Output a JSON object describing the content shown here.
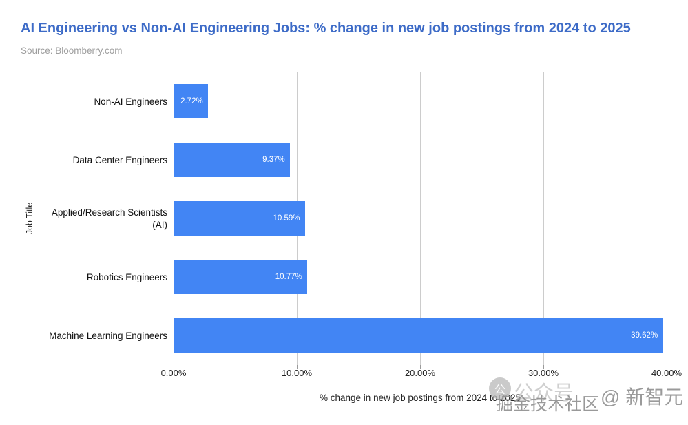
{
  "header": {
    "title": "AI Engineering vs Non-AI Engineering Jobs: % change in new job postings from 2024 to 2025",
    "source": "Source: Bloomberry.com"
  },
  "chart_data": {
    "type": "bar",
    "orientation": "horizontal",
    "title": "AI Engineering vs Non-AI Engineering Jobs: % change in new job postings from 2024 to 2025",
    "categories": [
      "Non-AI Engineers",
      "Data Center Engineers",
      "Applied/Research Scientists (AI)",
      "Robotics Engineers",
      "Machine Learning Engineers"
    ],
    "values": [
      2.72,
      9.37,
      10.59,
      10.77,
      39.62
    ],
    "value_labels": [
      "2.72%",
      "9.37%",
      "10.59%",
      "10.77%",
      "39.62%"
    ],
    "xlabel": "% change in new job postings from 2024 to 2025",
    "ylabel": "Job Title",
    "xlim": [
      0,
      40
    ],
    "x_ticks": [
      {
        "value": 0,
        "label": "0.00%"
      },
      {
        "value": 10,
        "label": "10.00%"
      },
      {
        "value": 20,
        "label": "20.00%"
      },
      {
        "value": 30,
        "label": "30.00%"
      },
      {
        "value": 40,
        "label": "40.00%"
      }
    ],
    "grid": true,
    "legend": "none"
  },
  "colors": {
    "title": "#3D6BC7",
    "bar": "#4285F4",
    "source_text": "#9E9E9E",
    "grid": "#CCCCCC",
    "axis": "#333333",
    "value_label": "#FFFFFF"
  },
  "watermark": {
    "badge": "公",
    "text_light": "公众号",
    "text_dark": "掘金技术社区",
    "text_handle": "@ 新智元"
  }
}
